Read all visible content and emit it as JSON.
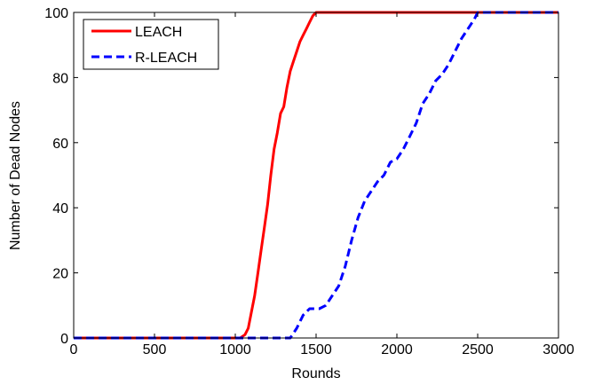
{
  "chart_data": {
    "type": "line",
    "title": "",
    "xlabel": "Rounds",
    "ylabel": "Number of Dead Nodes",
    "xlim": [
      0,
      3000
    ],
    "ylim": [
      0,
      100
    ],
    "xticks": [
      0,
      500,
      1000,
      1500,
      2000,
      2500,
      3000
    ],
    "yticks": [
      0,
      20,
      40,
      60,
      80,
      100
    ],
    "grid": false,
    "legend_position": "top-left",
    "series": [
      {
        "name": "LEACH",
        "color": "#ff0000",
        "style": "solid",
        "points": [
          [
            0,
            0
          ],
          [
            1030,
            0
          ],
          [
            1060,
            1
          ],
          [
            1080,
            3
          ],
          [
            1100,
            8
          ],
          [
            1120,
            13
          ],
          [
            1140,
            20
          ],
          [
            1160,
            27
          ],
          [
            1180,
            34
          ],
          [
            1200,
            41
          ],
          [
            1220,
            50
          ],
          [
            1240,
            58
          ],
          [
            1260,
            63
          ],
          [
            1280,
            69
          ],
          [
            1300,
            71
          ],
          [
            1320,
            77
          ],
          [
            1340,
            82
          ],
          [
            1360,
            85
          ],
          [
            1380,
            88
          ],
          [
            1400,
            91
          ],
          [
            1420,
            93
          ],
          [
            1440,
            95
          ],
          [
            1460,
            97
          ],
          [
            1480,
            99
          ],
          [
            1500,
            100
          ],
          [
            1530,
            100
          ],
          [
            3000,
            100
          ]
        ]
      },
      {
        "name": "R-LEACH",
        "color": "#0000ff",
        "style": "dashed",
        "points": [
          [
            0,
            0
          ],
          [
            1340,
            0
          ],
          [
            1380,
            3
          ],
          [
            1420,
            7
          ],
          [
            1460,
            9
          ],
          [
            1520,
            9
          ],
          [
            1560,
            10
          ],
          [
            1600,
            13
          ],
          [
            1640,
            16
          ],
          [
            1680,
            22
          ],
          [
            1720,
            30
          ],
          [
            1760,
            37
          ],
          [
            1800,
            42
          ],
          [
            1840,
            45
          ],
          [
            1880,
            48
          ],
          [
            1920,
            50
          ],
          [
            1960,
            54
          ],
          [
            2000,
            55
          ],
          [
            2040,
            58
          ],
          [
            2080,
            62
          ],
          [
            2120,
            66
          ],
          [
            2160,
            72
          ],
          [
            2200,
            75
          ],
          [
            2240,
            79
          ],
          [
            2280,
            81
          ],
          [
            2320,
            84
          ],
          [
            2360,
            88
          ],
          [
            2400,
            92
          ],
          [
            2440,
            95
          ],
          [
            2480,
            98
          ],
          [
            2500,
            100
          ],
          [
            3000,
            100
          ]
        ]
      }
    ]
  }
}
